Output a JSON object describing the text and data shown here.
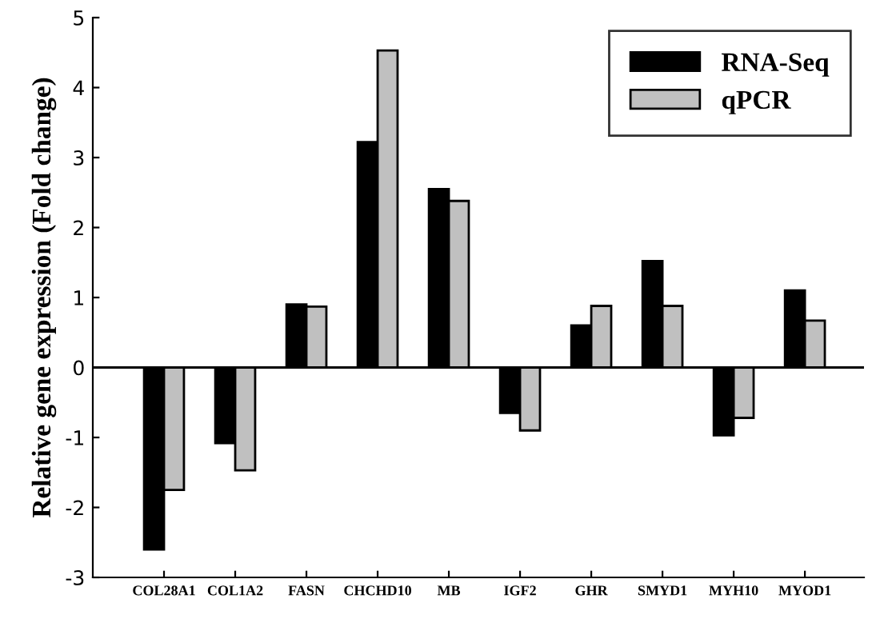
{
  "chart_data": {
    "type": "bar",
    "ylabel": "Relative gene expression (Fold change)",
    "categories": [
      "COL28A1",
      "COL1A2",
      "FASN",
      "CHCHD10",
      "MB",
      "IGF2",
      "GHR",
      "SMYD1",
      "MYH10",
      "MYOD1"
    ],
    "series": [
      {
        "name": "RNA-Seq",
        "color": "#000000",
        "values": [
          -2.6,
          -1.08,
          0.9,
          3.22,
          2.55,
          -0.65,
          0.6,
          1.52,
          -0.97,
          1.1
        ]
      },
      {
        "name": "qPCR",
        "color": "#c0c0c0",
        "values": [
          -1.75,
          -1.47,
          0.87,
          4.53,
          2.38,
          -0.9,
          0.88,
          0.88,
          -0.72,
          0.67
        ]
      }
    ],
    "ylim": [
      -3,
      5
    ],
    "yticks": [
      -3,
      -2,
      -1,
      0,
      1,
      2,
      3,
      4,
      5
    ],
    "ref_lines": [
      {
        "axis": "y",
        "value": 0,
        "color": "#000000"
      }
    ],
    "legend": "top right",
    "grid": false
  }
}
